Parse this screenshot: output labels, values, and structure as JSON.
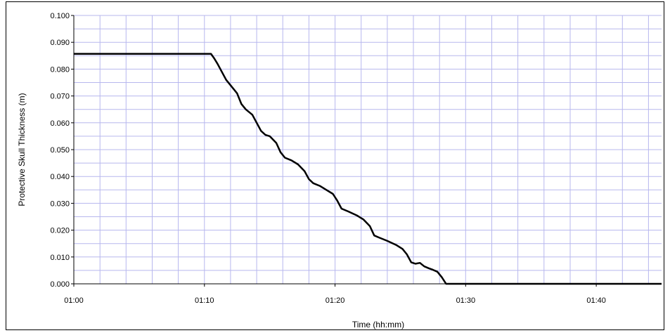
{
  "chart_data": {
    "type": "line",
    "title": "",
    "xlabel": "Time (hh:mm)",
    "ylabel": "Protective Skull Thickness (m)",
    "x_unit": "hh:mm",
    "xlim": [
      "01:00",
      "01:45"
    ],
    "ylim": [
      0,
      0.1
    ],
    "x_ticks": [
      "01:00",
      "01:10",
      "01:20",
      "01:30",
      "01:40"
    ],
    "y_ticks": [
      "0.000",
      "0.010",
      "0.020",
      "0.030",
      "0.040",
      "0.050",
      "0.060",
      "0.070",
      "0.080",
      "0.090",
      "0.100"
    ],
    "grid": true,
    "legend": "none",
    "series": [
      {
        "color": "#000000",
        "points": [
          [
            "01:00:00",
            0.0857
          ],
          [
            "01:10:30",
            0.0857
          ],
          [
            "01:10:45",
            0.084
          ],
          [
            "01:11:00",
            0.082
          ],
          [
            "01:11:20",
            0.079
          ],
          [
            "01:11:40",
            0.076
          ],
          [
            "01:12:00",
            0.074
          ],
          [
            "01:12:30",
            0.071
          ],
          [
            "01:12:50",
            0.067
          ],
          [
            "01:13:10",
            0.065
          ],
          [
            "01:13:40",
            0.063
          ],
          [
            "01:14:00",
            0.06
          ],
          [
            "01:14:20",
            0.057
          ],
          [
            "01:14:40",
            0.0555
          ],
          [
            "01:15:00",
            0.055
          ],
          [
            "01:15:30",
            0.0525
          ],
          [
            "01:15:50",
            0.049
          ],
          [
            "01:16:10",
            0.047
          ],
          [
            "01:16:40",
            0.046
          ],
          [
            "01:17:10",
            0.0445
          ],
          [
            "01:17:40",
            0.042
          ],
          [
            "01:18:00",
            0.039
          ],
          [
            "01:18:20",
            0.0375
          ],
          [
            "01:18:50",
            0.0365
          ],
          [
            "01:19:20",
            0.035
          ],
          [
            "01:19:50",
            0.0335
          ],
          [
            "01:20:10",
            0.031
          ],
          [
            "01:20:30",
            0.028
          ],
          [
            "01:21:00",
            0.027
          ],
          [
            "01:21:40",
            0.0255
          ],
          [
            "01:22:10",
            0.024
          ],
          [
            "01:22:40",
            0.0215
          ],
          [
            "01:23:00",
            0.018
          ],
          [
            "01:23:20",
            0.0173
          ],
          [
            "01:24:00",
            0.016
          ],
          [
            "01:24:40",
            0.0145
          ],
          [
            "01:25:10",
            0.013
          ],
          [
            "01:25:30",
            0.011
          ],
          [
            "01:25:50",
            0.008
          ],
          [
            "01:26:10",
            0.0075
          ],
          [
            "01:26:30",
            0.0078
          ],
          [
            "01:26:50",
            0.0065
          ],
          [
            "01:27:10",
            0.0058
          ],
          [
            "01:27:30",
            0.0052
          ],
          [
            "01:27:50",
            0.0045
          ],
          [
            "01:28:10",
            0.0025
          ],
          [
            "01:28:30",
            0.0
          ],
          [
            "01:45:00",
            0.0
          ]
        ]
      }
    ]
  }
}
